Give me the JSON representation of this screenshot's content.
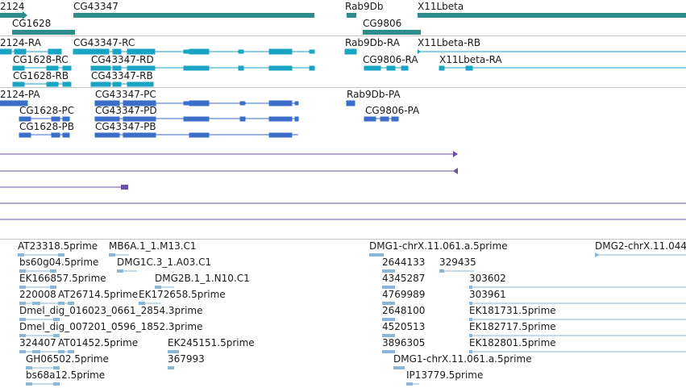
{
  "colors": {
    "gene": "#2f8c8c",
    "transcript_dmel": "#1aa4c4",
    "transcript_alt": "#3a6ec8",
    "alignment": "#6a50a6",
    "est": "#8bb8d8",
    "separator": "#c4c4c4"
  },
  "tracks": {
    "genes": [
      {
        "label": "2124"
      },
      {
        "label": "CG43347"
      },
      {
        "label": "Rab9Db"
      },
      {
        "label": "X11Lbeta"
      },
      {
        "label": "CG1628"
      },
      {
        "label": "CG9806"
      }
    ],
    "transcripts_ra": [
      {
        "label": "2124-RA"
      },
      {
        "label": "CG43347-RC"
      },
      {
        "label": "Rab9Db-RA"
      },
      {
        "label": "X11Lbeta-RB"
      },
      {
        "label": "CG1628-RC"
      },
      {
        "label": "CG43347-RD"
      },
      {
        "label": "CG9806-RA"
      },
      {
        "label": "X11Lbeta-RA"
      },
      {
        "label": "CG1628-RB"
      },
      {
        "label": "CG43347-RB"
      }
    ],
    "transcripts_pa": [
      {
        "label": "2124-PA"
      },
      {
        "label": "CG43347-PC"
      },
      {
        "label": "Rab9Db-PA"
      },
      {
        "label": "CG1628-PC"
      },
      {
        "label": "CG43347-PD"
      },
      {
        "label": "CG9806-PA"
      },
      {
        "label": "CG1628-PB"
      },
      {
        "label": "CG43347-PB"
      }
    ],
    "ests": [
      {
        "label": "AT23318.5prime"
      },
      {
        "label": "MB6A.1_1.M13.C1"
      },
      {
        "label": "DMG1-chrX.11.061.a.5prime"
      },
      {
        "label": "DMG2-chrX.11.044"
      },
      {
        "label": "bs60g04.5prime"
      },
      {
        "label": "DMG1C.3_1.A03.C1"
      },
      {
        "label": "2644133"
      },
      {
        "label": "329435"
      },
      {
        "label": "EK166857.5prime"
      },
      {
        "label": "DMG2B.1_1.N10.C1"
      },
      {
        "label": "4345287"
      },
      {
        "label": "303602"
      },
      {
        "label": "220008"
      },
      {
        "label": "AT26714.5prime"
      },
      {
        "label": "EK172658.5prime"
      },
      {
        "label": "4769989"
      },
      {
        "label": "303961"
      },
      {
        "label": "Dmel_dig_016023_0661_2854.3prime"
      },
      {
        "label": "2648100"
      },
      {
        "label": "EK181731.5prime"
      },
      {
        "label": "Dmel_dig_007201_0596_1852.3prime"
      },
      {
        "label": "4520513"
      },
      {
        "label": "EK182717.5prime"
      },
      {
        "label": "324407"
      },
      {
        "label": "AT01452.5prime"
      },
      {
        "label": "EK245151.5prime"
      },
      {
        "label": "3896305"
      },
      {
        "label": "EK182801.5prime"
      },
      {
        "label": "GH06502.5prime"
      },
      {
        "label": "367993"
      },
      {
        "label": "DMG1-chrX.11.061.a.5prime"
      },
      {
        "label": "bs68a12.5prime"
      },
      {
        "label": "IP13779.5prime"
      }
    ]
  }
}
